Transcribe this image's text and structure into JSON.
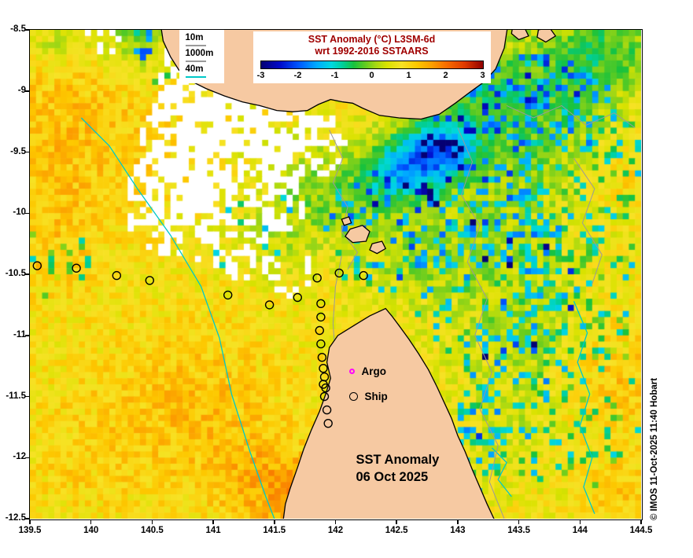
{
  "figure": {
    "credit": "© IMOS 11-Oct-2025 11:40 Hobart",
    "background": "#ffffff"
  },
  "legend": {
    "title_line1": "SST Anomaly (°C) L3SM-6d",
    "title_line2": "wrt 1992-2016 SSTAARS",
    "title_color": "#a00000",
    "ticks": [
      -3,
      -2,
      -1,
      0,
      1,
      2,
      3
    ]
  },
  "depth_legend": {
    "items": [
      {
        "label": "10m",
        "color": "#9a9a9a"
      },
      {
        "label": "1000m",
        "color": "#9a9a9a"
      },
      {
        "label": "40m",
        "color": "#00c8c8"
      }
    ]
  },
  "marker_legend": {
    "argo_label": "Argo",
    "argo_color": "#ff00ff",
    "ship_label": "Ship",
    "ship_color": "#000000"
  },
  "map_label": {
    "line1": "SST Anomaly",
    "line2": "06 Oct 2025"
  },
  "axes": {
    "x_ticks": [
      139.5,
      140,
      140.5,
      141,
      141.5,
      142,
      142.5,
      143,
      143.5,
      144,
      144.5
    ],
    "y_ticks": [
      -8.5,
      -9,
      -9.5,
      -10,
      -10.5,
      -11,
      -11.5,
      -12,
      -12.5
    ],
    "lon_range": [
      139.5,
      144.5
    ],
    "lat_range": [
      -8.5,
      -12.5
    ]
  },
  "map": {
    "seed": 42,
    "land_color": "#f6c9a2",
    "coast_color": "#000000",
    "nodata_color": "#ffffff",
    "base_anomaly": 0.7,
    "colormap": [
      [
        -3.0,
        "#050073"
      ],
      [
        -2.5,
        "#0008c8"
      ],
      [
        -2.0,
        "#0055ff"
      ],
      [
        -1.5,
        "#00aaff"
      ],
      [
        -1.1,
        "#00d8e0"
      ],
      [
        -0.8,
        "#00cf9a"
      ],
      [
        -0.5,
        "#17c23e"
      ],
      [
        -0.2,
        "#5ecb21"
      ],
      [
        0.1,
        "#a5d813"
      ],
      [
        0.4,
        "#d9e200"
      ],
      [
        0.8,
        "#f7e225"
      ],
      [
        1.2,
        "#fdc800"
      ],
      [
        1.6,
        "#fca000"
      ],
      [
        2.0,
        "#f86e00"
      ],
      [
        2.5,
        "#e03a00"
      ],
      [
        3.0,
        "#900000"
      ]
    ],
    "value_blobs": [
      [
        139.8,
        -9.3,
        0.9,
        0.55
      ],
      [
        139.7,
        -10.3,
        0.5,
        0.3
      ],
      [
        139.95,
        -11.95,
        0.7,
        0.3
      ],
      [
        140.9,
        -11.5,
        0.7,
        0.5
      ],
      [
        141.35,
        -12.2,
        0.5,
        0.4
      ],
      [
        141.65,
        -12.3,
        0.35,
        0.55
      ],
      [
        144.3,
        -11.3,
        0.5,
        0.55
      ],
      [
        144.4,
        -9.7,
        0.3,
        0.35
      ],
      [
        144.35,
        -12.3,
        0.35,
        0.4
      ],
      [
        143.9,
        -8.85,
        0.5,
        -0.9
      ],
      [
        144.3,
        -8.65,
        0.3,
        -0.7
      ],
      [
        143.5,
        -9.5,
        0.55,
        -0.7
      ],
      [
        143.2,
        -9.0,
        0.35,
        -0.8
      ],
      [
        143.2,
        -10.3,
        0.5,
        -0.5
      ],
      [
        143.6,
        -11.0,
        0.5,
        -0.55
      ],
      [
        143.4,
        -11.7,
        0.4,
        -0.3
      ],
      [
        142.7,
        -9.55,
        0.28,
        -1.9
      ],
      [
        142.95,
        -9.45,
        0.25,
        -1.4
      ],
      [
        142.45,
        -9.7,
        0.25,
        -1.0
      ],
      [
        142.2,
        -9.9,
        0.4,
        -0.6
      ],
      [
        141.8,
        -9.8,
        0.35,
        -0.5
      ],
      [
        142.6,
        -10.4,
        0.35,
        -0.45
      ],
      [
        141.5,
        -10.2,
        0.3,
        -0.4
      ],
      [
        140.35,
        -8.6,
        0.28,
        -0.9
      ],
      [
        139.7,
        -8.6,
        0.25,
        -0.6
      ]
    ],
    "spike_blobs": [
      [
        143.6,
        -9.6,
        0.9,
        0.25
      ],
      [
        143.3,
        -10.6,
        0.7,
        0.22
      ],
      [
        142.4,
        -10.15,
        0.5,
        0.2
      ],
      [
        143.8,
        -11.5,
        0.8,
        0.15
      ],
      [
        142.9,
        -12.0,
        0.5,
        0.15
      ],
      [
        141.3,
        -10.1,
        0.4,
        0.12
      ],
      [
        140.6,
        -8.7,
        0.3,
        0.2
      ],
      [
        144.2,
        -10.6,
        0.4,
        0.18
      ],
      [
        139.7,
        -10.4,
        0.3,
        0.18
      ]
    ],
    "mask_blobs": [
      [
        141.0,
        -8.8,
        0.45,
        0.85
      ],
      [
        140.9,
        -9.4,
        0.5,
        0.92
      ],
      [
        140.7,
        -9.9,
        0.45,
        0.85
      ],
      [
        141.35,
        -9.3,
        0.42,
        0.85
      ],
      [
        141.1,
        -10.3,
        0.3,
        0.45
      ],
      [
        141.6,
        -10.5,
        0.22,
        0.35
      ],
      [
        141.78,
        -9.42,
        0.3,
        0.55
      ],
      [
        140.1,
        -8.55,
        0.18,
        0.4
      ],
      [
        141.5,
        -9.9,
        0.3,
        0.5
      ],
      [
        141.3,
        -10.05,
        0.28,
        0.45
      ]
    ],
    "land_polygons": [
      {
        "name": "new-guinea",
        "points": [
          [
            140.57,
            -8.46
          ],
          [
            140.59,
            -8.59
          ],
          [
            140.65,
            -8.72
          ],
          [
            140.72,
            -8.83
          ],
          [
            140.82,
            -8.92
          ],
          [
            140.94,
            -8.98
          ],
          [
            141.09,
            -9.04
          ],
          [
            141.24,
            -9.09
          ],
          [
            141.38,
            -9.12
          ],
          [
            141.52,
            -9.16
          ],
          [
            141.65,
            -9.17
          ],
          [
            141.77,
            -9.16
          ],
          [
            141.86,
            -9.11
          ],
          [
            141.96,
            -9.07
          ],
          [
            142.06,
            -9.09
          ],
          [
            142.14,
            -9.1
          ],
          [
            142.22,
            -9.14
          ],
          [
            142.36,
            -9.2
          ],
          [
            142.52,
            -9.22
          ],
          [
            142.7,
            -9.23
          ],
          [
            142.85,
            -9.19
          ],
          [
            142.98,
            -9.1
          ],
          [
            143.1,
            -9.01
          ],
          [
            143.21,
            -8.93
          ],
          [
            143.31,
            -8.82
          ],
          [
            143.38,
            -8.65
          ],
          [
            143.41,
            -8.46
          ]
        ]
      },
      {
        "name": "cape-york-peninsula",
        "points": [
          [
            141.57,
            -12.53
          ],
          [
            141.59,
            -12.38
          ],
          [
            141.63,
            -12.25
          ],
          [
            141.69,
            -12.08
          ],
          [
            141.74,
            -11.93
          ],
          [
            141.8,
            -11.78
          ],
          [
            141.87,
            -11.62
          ],
          [
            141.92,
            -11.48
          ],
          [
            141.96,
            -11.35
          ],
          [
            141.93,
            -11.22
          ],
          [
            141.95,
            -11.1
          ],
          [
            142.02,
            -11.0
          ],
          [
            142.15,
            -10.92
          ],
          [
            142.28,
            -10.84
          ],
          [
            142.41,
            -10.78
          ],
          [
            142.46,
            -10.84
          ],
          [
            142.52,
            -10.92
          ],
          [
            142.6,
            -11.03
          ],
          [
            142.68,
            -11.15
          ],
          [
            142.76,
            -11.28
          ],
          [
            142.83,
            -11.42
          ],
          [
            142.89,
            -11.55
          ],
          [
            142.95,
            -11.68
          ],
          [
            143.0,
            -11.82
          ],
          [
            143.06,
            -11.95
          ],
          [
            143.12,
            -12.1
          ],
          [
            143.18,
            -12.24
          ],
          [
            143.24,
            -12.38
          ],
          [
            143.31,
            -12.53
          ]
        ]
      },
      {
        "name": "island-1",
        "points": [
          [
            142.12,
            -10.13
          ],
          [
            142.22,
            -10.1
          ],
          [
            142.28,
            -10.15
          ],
          [
            142.25,
            -10.23
          ],
          [
            142.14,
            -10.24
          ],
          [
            142.08,
            -10.19
          ]
        ]
      },
      {
        "name": "island-2",
        "points": [
          [
            142.3,
            -10.25
          ],
          [
            142.38,
            -10.23
          ],
          [
            142.41,
            -10.29
          ],
          [
            142.34,
            -10.33
          ],
          [
            142.28,
            -10.3
          ]
        ]
      },
      {
        "name": "island-3",
        "points": [
          [
            142.05,
            -10.05
          ],
          [
            142.11,
            -10.03
          ],
          [
            142.13,
            -10.08
          ],
          [
            142.07,
            -10.1
          ]
        ]
      },
      {
        "name": "island-4",
        "points": [
          [
            143.45,
            -8.47
          ],
          [
            143.55,
            -8.49
          ],
          [
            143.58,
            -8.55
          ],
          [
            143.5,
            -8.58
          ],
          [
            143.44,
            -8.53
          ]
        ]
      },
      {
        "name": "island-5",
        "points": [
          [
            143.66,
            -8.5
          ],
          [
            143.75,
            -8.48
          ],
          [
            143.8,
            -8.55
          ],
          [
            143.72,
            -8.6
          ],
          [
            143.65,
            -8.56
          ]
        ]
      }
    ],
    "contours": [
      {
        "name": "40m-west",
        "color": "#00c8c8",
        "width": 1.3,
        "points": [
          [
            139.92,
            -9.22
          ],
          [
            140.15,
            -9.45
          ],
          [
            140.38,
            -9.8
          ],
          [
            140.65,
            -10.18
          ],
          [
            140.9,
            -10.6
          ],
          [
            141.05,
            -11.02
          ],
          [
            141.15,
            -11.48
          ],
          [
            141.3,
            -11.95
          ],
          [
            141.43,
            -12.32
          ],
          [
            141.5,
            -12.5
          ]
        ]
      },
      {
        "name": "40m-east",
        "color": "#00c8c8",
        "width": 1.3,
        "points": [
          [
            143.95,
            -10.72
          ],
          [
            144.06,
            -10.98
          ],
          [
            143.98,
            -11.22
          ],
          [
            144.08,
            -11.48
          ],
          [
            144.0,
            -11.74
          ],
          [
            144.1,
            -12.0
          ],
          [
            144.03,
            -12.24
          ],
          [
            144.12,
            -12.46
          ]
        ]
      },
      {
        "name": "40m-southeast",
        "color": "#00c8c8",
        "width": 1.3,
        "points": [
          [
            143.28,
            -11.92
          ],
          [
            143.4,
            -12.04
          ],
          [
            143.33,
            -12.18
          ],
          [
            143.44,
            -12.32
          ]
        ]
      },
      {
        "name": "10m-torres",
        "color": "#9a9a9a",
        "width": 1,
        "points": [
          [
            141.95,
            -9.32
          ],
          [
            142.06,
            -9.55
          ],
          [
            141.98,
            -9.75
          ],
          [
            142.1,
            -9.95
          ],
          [
            142.05,
            -10.15
          ],
          [
            142.18,
            -10.32
          ],
          [
            142.1,
            -10.46
          ]
        ]
      },
      {
        "name": "1000m-east",
        "color": "#9a9a9a",
        "width": 1,
        "points": [
          [
            143.0,
            -9.3
          ],
          [
            143.12,
            -9.58
          ],
          [
            143.03,
            -9.85
          ],
          [
            143.18,
            -10.1
          ],
          [
            143.08,
            -10.4
          ],
          [
            143.24,
            -10.7
          ],
          [
            143.14,
            -11.0
          ],
          [
            143.28,
            -11.3
          ],
          [
            143.18,
            -11.6
          ],
          [
            143.33,
            -11.9
          ],
          [
            143.26,
            -12.2
          ],
          [
            143.38,
            -12.5
          ]
        ]
      },
      {
        "name": "1000m-northeast",
        "color": "#9a9a9a",
        "width": 1,
        "points": [
          [
            143.4,
            -9.12
          ],
          [
            143.62,
            -9.22
          ],
          [
            143.85,
            -9.12
          ],
          [
            144.05,
            -9.28
          ],
          [
            144.28,
            -9.18
          ],
          [
            144.45,
            -9.3
          ]
        ]
      },
      {
        "name": "1000m-mid-right",
        "color": "#9a9a9a",
        "width": 1,
        "points": [
          [
            143.95,
            -9.55
          ],
          [
            144.12,
            -9.8
          ],
          [
            144.02,
            -10.08
          ],
          [
            144.18,
            -10.34
          ],
          [
            144.1,
            -10.58
          ]
        ]
      },
      {
        "name": "10m-coastal",
        "color": "#9a9a9a",
        "width": 1,
        "points": [
          [
            142.05,
            -10.35
          ],
          [
            142.0,
            -10.6
          ],
          [
            141.98,
            -10.9
          ],
          [
            142.0,
            -11.2
          ],
          [
            142.0,
            -11.5
          ],
          [
            141.96,
            -11.8
          ],
          [
            141.88,
            -12.1
          ],
          [
            141.78,
            -12.4
          ]
        ]
      }
    ],
    "ship_track": [
      [
        139.56,
        -10.43
      ],
      [
        139.88,
        -10.45
      ],
      [
        140.21,
        -10.51
      ],
      [
        140.48,
        -10.55
      ],
      [
        141.12,
        -10.67
      ],
      [
        141.46,
        -10.75
      ],
      [
        141.69,
        -10.69
      ],
      [
        141.88,
        -10.74
      ],
      [
        141.85,
        -10.53
      ],
      [
        142.03,
        -10.49
      ],
      [
        142.23,
        -10.51
      ],
      [
        141.88,
        -10.85
      ],
      [
        141.87,
        -10.96
      ],
      [
        141.88,
        -11.07
      ],
      [
        141.89,
        -11.18
      ],
      [
        141.9,
        -11.27
      ],
      [
        141.91,
        -11.34
      ],
      [
        141.9,
        -11.4
      ],
      [
        141.92,
        -11.43
      ],
      [
        141.91,
        -11.5
      ],
      [
        141.93,
        -11.61
      ],
      [
        141.94,
        -11.72
      ]
    ]
  }
}
